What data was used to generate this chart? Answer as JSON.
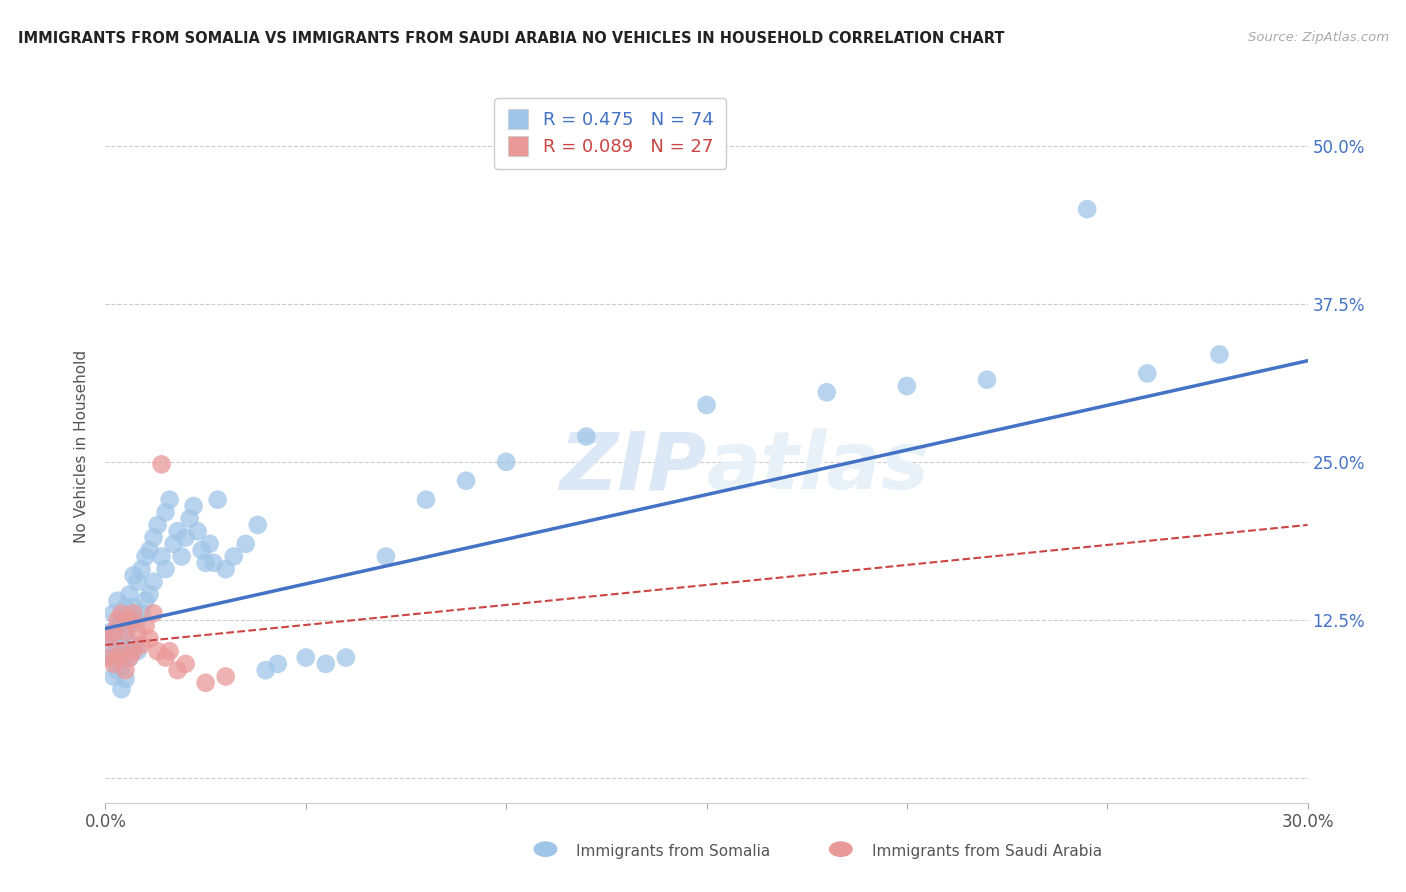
{
  "title": "IMMIGRANTS FROM SOMALIA VS IMMIGRANTS FROM SAUDI ARABIA NO VEHICLES IN HOUSEHOLD CORRELATION CHART",
  "source": "Source: ZipAtlas.com",
  "ylabel_label": "No Vehicles in Household",
  "xlim": [
    0.0,
    0.3
  ],
  "ylim": [
    -0.02,
    0.545
  ],
  "ytick_vals": [
    0.0,
    0.125,
    0.25,
    0.375,
    0.5
  ],
  "ytick_labels": [
    "",
    "12.5%",
    "25.0%",
    "37.5%",
    "50.0%"
  ],
  "xtick_vals": [
    0.0,
    0.05,
    0.1,
    0.15,
    0.2,
    0.25,
    0.3
  ],
  "xtick_labels": [
    "0.0%",
    "",
    "",
    "",
    "",
    "",
    "30.0%"
  ],
  "somalia_R": 0.475,
  "somalia_N": 74,
  "saudi_R": 0.089,
  "saudi_N": 27,
  "somalia_color": "#9fc5e8",
  "saudi_color": "#ea9999",
  "somalia_line_color": "#4472c4",
  "saudi_line_color": "#cc4444",
  "bg_color": "#ffffff",
  "grid_color": "#cccccc",
  "watermark_color": "#dce8f5",
  "somalia_line_y0": 0.118,
  "somalia_line_y1": 0.33,
  "saudi_line_y0": 0.105,
  "saudi_line_y1": 0.2,
  "somalia_x": [
    0.001,
    0.001,
    0.001,
    0.002,
    0.002,
    0.002,
    0.002,
    0.003,
    0.003,
    0.003,
    0.003,
    0.004,
    0.004,
    0.004,
    0.004,
    0.005,
    0.005,
    0.005,
    0.005,
    0.006,
    0.006,
    0.006,
    0.007,
    0.007,
    0.007,
    0.008,
    0.008,
    0.008,
    0.009,
    0.009,
    0.01,
    0.01,
    0.011,
    0.011,
    0.012,
    0.012,
    0.013,
    0.014,
    0.015,
    0.015,
    0.016,
    0.017,
    0.018,
    0.019,
    0.02,
    0.021,
    0.022,
    0.023,
    0.024,
    0.025,
    0.026,
    0.027,
    0.028,
    0.03,
    0.032,
    0.035,
    0.038,
    0.04,
    0.043,
    0.05,
    0.055,
    0.06,
    0.07,
    0.08,
    0.09,
    0.1,
    0.12,
    0.15,
    0.18,
    0.2,
    0.22,
    0.245,
    0.26,
    0.278
  ],
  "somalia_y": [
    0.115,
    0.105,
    0.095,
    0.13,
    0.11,
    0.095,
    0.08,
    0.14,
    0.12,
    0.1,
    0.085,
    0.125,
    0.105,
    0.088,
    0.07,
    0.135,
    0.115,
    0.098,
    0.078,
    0.145,
    0.12,
    0.095,
    0.16,
    0.135,
    0.105,
    0.155,
    0.125,
    0.1,
    0.165,
    0.13,
    0.175,
    0.14,
    0.18,
    0.145,
    0.19,
    0.155,
    0.2,
    0.175,
    0.21,
    0.165,
    0.22,
    0.185,
    0.195,
    0.175,
    0.19,
    0.205,
    0.215,
    0.195,
    0.18,
    0.17,
    0.185,
    0.17,
    0.22,
    0.165,
    0.175,
    0.185,
    0.2,
    0.085,
    0.09,
    0.095,
    0.09,
    0.095,
    0.175,
    0.22,
    0.235,
    0.25,
    0.27,
    0.295,
    0.305,
    0.31,
    0.315,
    0.45,
    0.32,
    0.335
  ],
  "saudi_x": [
    0.001,
    0.001,
    0.002,
    0.002,
    0.003,
    0.003,
    0.004,
    0.004,
    0.005,
    0.005,
    0.006,
    0.006,
    0.007,
    0.007,
    0.008,
    0.009,
    0.01,
    0.011,
    0.012,
    0.013,
    0.014,
    0.015,
    0.016,
    0.018,
    0.02,
    0.025,
    0.03
  ],
  "saudi_y": [
    0.11,
    0.095,
    0.115,
    0.09,
    0.125,
    0.095,
    0.13,
    0.1,
    0.115,
    0.085,
    0.125,
    0.095,
    0.13,
    0.1,
    0.115,
    0.105,
    0.12,
    0.11,
    0.13,
    0.1,
    0.248,
    0.095,
    0.1,
    0.085,
    0.09,
    0.075,
    0.08
  ]
}
